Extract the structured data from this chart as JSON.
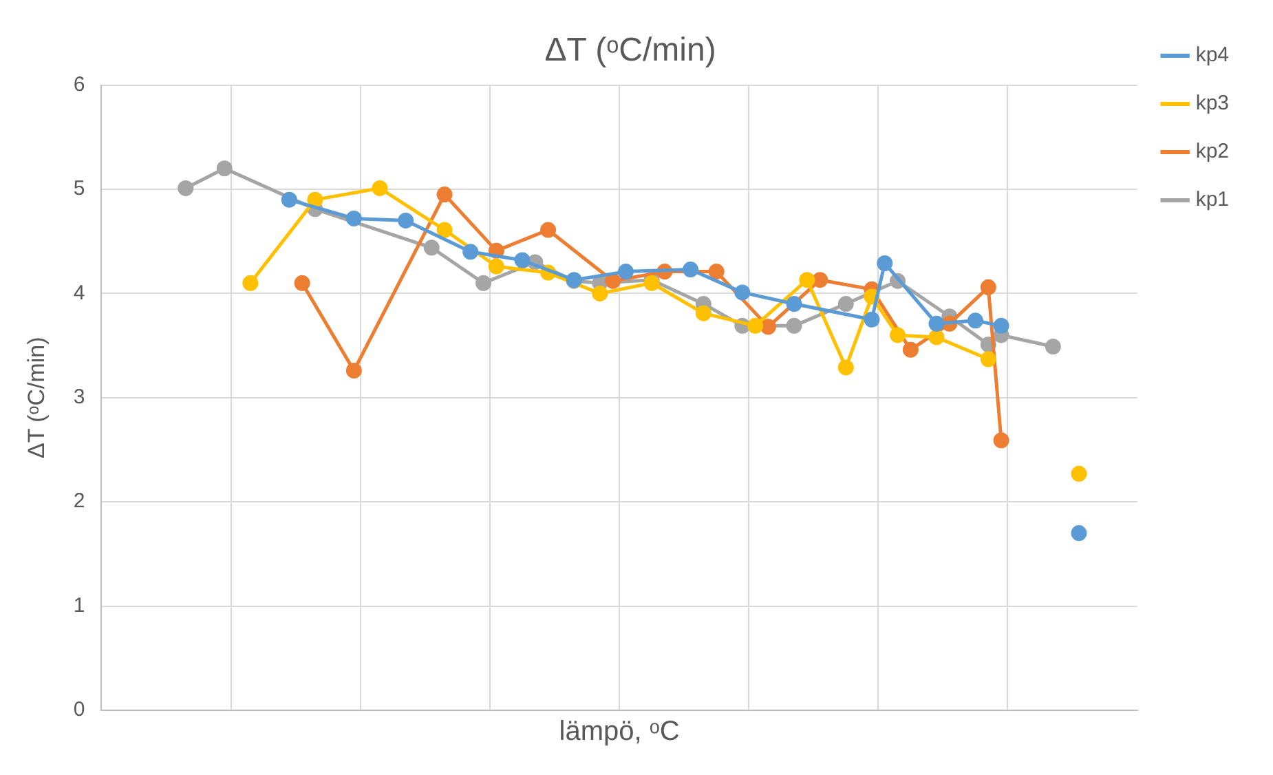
{
  "chart_data": {
    "type": "line",
    "title": "ΔT (ᵒC/min)",
    "xlabel": "lämpö, ᵒC",
    "ylabel": "ΔT (ᵒC/min)",
    "categories": [
      null,
      null,
      null,
      null,
      null,
      null,
      null,
      null,
      null,
      null,
      null,
      null,
      null,
      null,
      null,
      null,
      null,
      null,
      null,
      null,
      null,
      null,
      null,
      null,
      null,
      null,
      null,
      null,
      null,
      null,
      null,
      null,
      null,
      null,
      null,
      null,
      null,
      null,
      null,
      null,
      null,
      null,
      null,
      null,
      null,
      null,
      null,
      null,
      null,
      null,
      null,
      null,
      null,
      null,
      null,
      null,
      null,
      null,
      null,
      null,
      null,
      null,
      null,
      null,
      null,
      null,
      null,
      null,
      null,
      null,
      null,
      null,
      null,
      null,
      null,
      null,
      null,
      null,
      null,
      null
    ],
    "ylim": [
      0,
      6
    ],
    "yticks": [
      0,
      1,
      2,
      3,
      4,
      5,
      6
    ],
    "grid": true,
    "legend": "top right",
    "tick_labels": "y",
    "marker": "circle",
    "line_style": "solid",
    "series": [
      {
        "name": "kp4",
        "color": "#5b9bd5",
        "values": [
          null,
          null,
          null,
          null,
          null,
          null,
          null,
          null,
          null,
          null,
          null,
          null,
          null,
          null,
          4.9,
          null,
          null,
          null,
          null,
          4.72,
          null,
          null,
          null,
          4.7,
          null,
          null,
          null,
          null,
          4.4,
          null,
          null,
          null,
          4.32,
          null,
          null,
          null,
          4.13,
          null,
          null,
          null,
          4.21,
          null,
          null,
          null,
          null,
          4.23,
          null,
          null,
          null,
          4.01,
          null,
          null,
          null,
          3.9,
          null,
          null,
          null,
          null,
          null,
          3.75,
          4.29,
          null,
          null,
          null,
          3.71,
          null,
          null,
          3.74,
          null,
          3.69,
          null,
          null,
          null,
          null,
          null,
          null,
          null,
          null,
          null,
          null
        ]
      },
      {
        "name": "kp3",
        "color": "#ffc000",
        "values": [
          null,
          null,
          null,
          null,
          null,
          null,
          null,
          null,
          null,
          null,
          null,
          4.1,
          null,
          null,
          null,
          null,
          4.9,
          null,
          null,
          null,
          null,
          5.01,
          null,
          null,
          null,
          null,
          4.61,
          null,
          null,
          null,
          4.26,
          null,
          null,
          null,
          4.2,
          null,
          null,
          null,
          4.0,
          null,
          null,
          null,
          4.1,
          null,
          null,
          null,
          3.81,
          null,
          null,
          null,
          3.69,
          null,
          null,
          null,
          4.13,
          null,
          null,
          3.29,
          null,
          3.97,
          null,
          3.6,
          null,
          null,
          3.58,
          null,
          null,
          null,
          3.37,
          null,
          null,
          null,
          null,
          null,
          null,
          null,
          null,
          null,
          null,
          null
        ]
      },
      {
        "name": "kp2",
        "color": "#ed7d31",
        "values": [
          null,
          null,
          null,
          null,
          null,
          null,
          null,
          null,
          null,
          null,
          null,
          null,
          null,
          null,
          null,
          4.1,
          null,
          null,
          null,
          3.26,
          null,
          null,
          null,
          null,
          null,
          null,
          4.95,
          null,
          null,
          null,
          4.41,
          null,
          null,
          null,
          4.61,
          null,
          null,
          null,
          null,
          4.12,
          null,
          null,
          null,
          4.21,
          null,
          null,
          null,
          4.21,
          null,
          null,
          null,
          3.68,
          null,
          null,
          null,
          4.13,
          null,
          null,
          null,
          4.04,
          null,
          null,
          3.46,
          null,
          null,
          3.71,
          null,
          null,
          4.06,
          2.59,
          null,
          null,
          null,
          null,
          null,
          null,
          null,
          null,
          null,
          null
        ]
      },
      {
        "name": "kp1",
        "color": "#a5a5a5",
        "values": [
          null,
          null,
          null,
          null,
          null,
          null,
          5.01,
          null,
          null,
          5.2,
          null,
          null,
          null,
          null,
          null,
          null,
          4.81,
          null,
          null,
          null,
          null,
          null,
          null,
          null,
          null,
          4.44,
          null,
          null,
          null,
          4.1,
          null,
          null,
          null,
          4.3,
          null,
          null,
          4.12,
          null,
          4.1,
          null,
          null,
          null,
          4.13,
          null,
          null,
          null,
          3.9,
          null,
          null,
          3.69,
          null,
          null,
          null,
          3.69,
          null,
          null,
          null,
          3.9,
          null,
          null,
          null,
          4.12,
          null,
          null,
          null,
          3.78,
          null,
          null,
          3.51,
          3.6,
          null,
          null,
          null,
          3.49,
          null,
          null,
          null,
          null,
          null,
          null
        ]
      },
      {
        "type": "scatter",
        "color": "#5b9bd5",
        "values": [
          null,
          null,
          null,
          null,
          null,
          null,
          null,
          null,
          null,
          null,
          null,
          null,
          null,
          null,
          null,
          null,
          null,
          null,
          null,
          null,
          null,
          null,
          null,
          null,
          null,
          null,
          null,
          null,
          null,
          null,
          null,
          null,
          null,
          null,
          null,
          null,
          null,
          null,
          null,
          null,
          null,
          null,
          null,
          null,
          null,
          null,
          null,
          null,
          null,
          null,
          null,
          null,
          null,
          null,
          null,
          null,
          null,
          null,
          null,
          null,
          null,
          null,
          null,
          null,
          null,
          null,
          null,
          null,
          null,
          null,
          null,
          null,
          null,
          null,
          null,
          1.7,
          null,
          null,
          null,
          null
        ]
      },
      {
        "type": "scatter",
        "color": "#ffc000",
        "values": [
          null,
          null,
          null,
          null,
          null,
          null,
          null,
          null,
          null,
          null,
          null,
          null,
          null,
          null,
          null,
          null,
          null,
          null,
          null,
          null,
          null,
          null,
          null,
          null,
          null,
          null,
          null,
          null,
          null,
          null,
          null,
          null,
          null,
          null,
          null,
          null,
          null,
          null,
          null,
          null,
          null,
          null,
          null,
          null,
          null,
          null,
          null,
          null,
          null,
          null,
          null,
          null,
          null,
          null,
          null,
          null,
          null,
          null,
          null,
          null,
          null,
          null,
          null,
          null,
          null,
          null,
          null,
          null,
          null,
          null,
          null,
          null,
          null,
          null,
          null,
          2.27,
          null,
          null,
          null,
          null
        ]
      }
    ]
  }
}
